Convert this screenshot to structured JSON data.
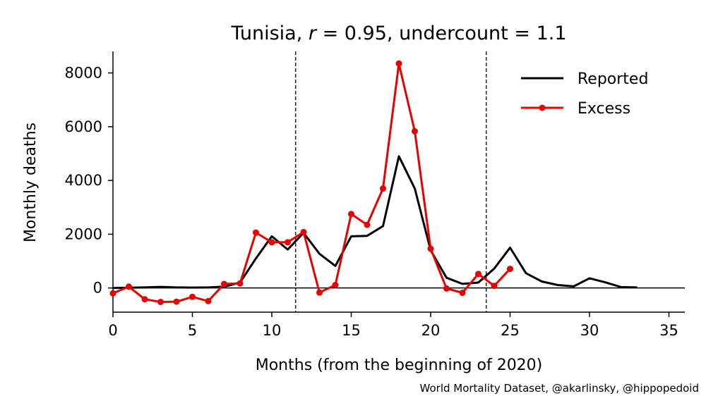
{
  "chart_data": {
    "type": "line",
    "title_parts": {
      "country": "Tunisia",
      "r_symbol": "r",
      "r_value": "0.95",
      "undercount_label": "undercount",
      "undercount_value": "1.1"
    },
    "xlabel": "Months (from the beginning of 2020)",
    "ylabel": "Monthly deaths",
    "credit": "World Mortality Dataset, @akarlinsky, @hippopedoid",
    "xlim": [
      0,
      36
    ],
    "ylim": [
      -900,
      8800
    ],
    "xticks": [
      0,
      5,
      10,
      15,
      20,
      25,
      30,
      35
    ],
    "yticks": [
      0,
      2000,
      4000,
      6000,
      8000
    ],
    "vlines": [
      11.5,
      23.5
    ],
    "hline": 0,
    "legend_position": "top-right",
    "series": [
      {
        "name": "Reported",
        "color": "#000000",
        "markers": false,
        "x": [
          0,
          1,
          2,
          3,
          4,
          5,
          6,
          7,
          8,
          9,
          10,
          11,
          12,
          13,
          14,
          15,
          16,
          17,
          18,
          19,
          20,
          21,
          22,
          23,
          24,
          25,
          26,
          27,
          28,
          29,
          30,
          31,
          32,
          33
        ],
        "y": [
          0,
          10,
          20,
          40,
          20,
          15,
          20,
          50,
          200,
          1100,
          1920,
          1430,
          2050,
          1270,
          820,
          1920,
          1940,
          2300,
          4900,
          3700,
          1400,
          380,
          150,
          200,
          720,
          1500,
          550,
          240,
          110,
          60,
          360,
          210,
          30,
          20
        ]
      },
      {
        "name": "Excess",
        "color": "#e80000",
        "markers": true,
        "x": [
          0,
          1,
          2,
          3,
          4,
          5,
          6,
          7,
          8,
          9,
          10,
          11,
          12,
          13,
          14,
          15,
          16,
          17,
          18,
          19,
          20,
          21,
          22,
          23,
          24,
          25
        ],
        "y": [
          -200,
          50,
          -420,
          -520,
          -510,
          -330,
          -490,
          150,
          170,
          2060,
          1700,
          1700,
          2080,
          -170,
          110,
          2750,
          2350,
          3700,
          8350,
          5830,
          1460,
          -20,
          -180,
          520,
          80,
          710
        ]
      }
    ]
  }
}
